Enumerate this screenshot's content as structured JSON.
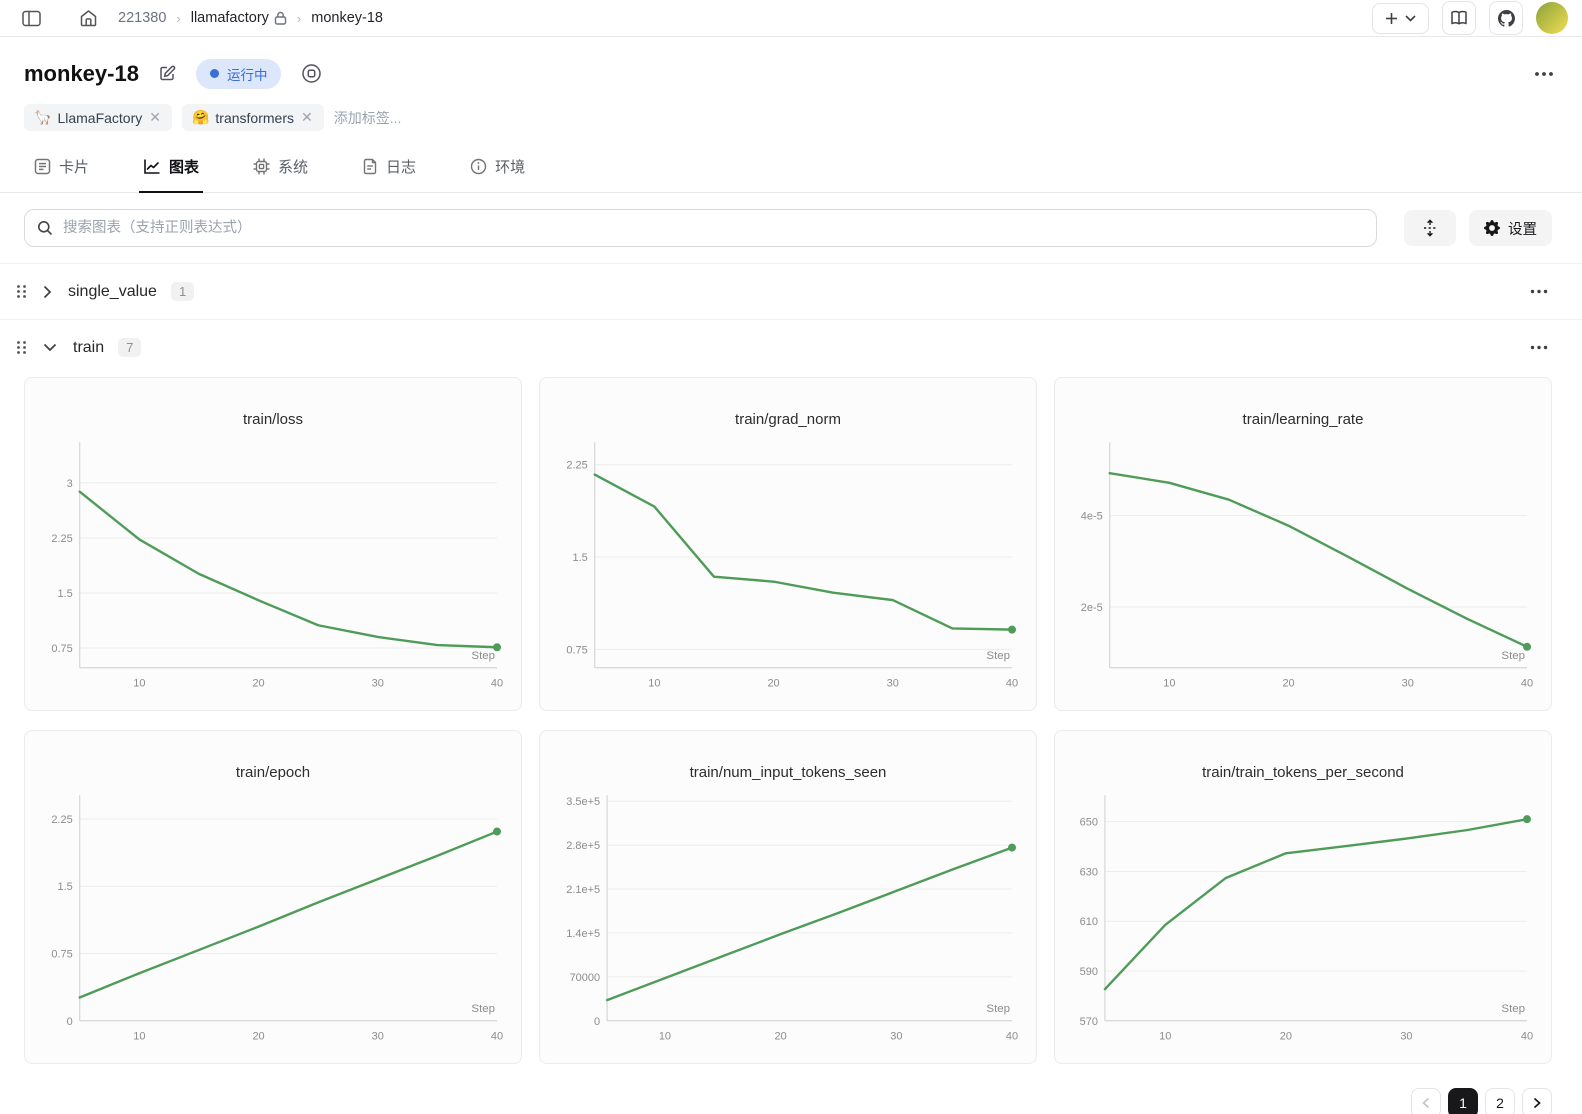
{
  "colors": {
    "status_blue": "#3b6ed8",
    "status_badge_bg": "#dce7fb",
    "chart_line": "#4f9b58",
    "active_page_bg": "#18181b"
  },
  "topbar": {
    "breadcrumb": {
      "project_id": "221380",
      "workspace": "llamafactory",
      "run": "monkey-18"
    }
  },
  "title_bar": {
    "run_name": "monkey-18",
    "status_label": "运行中",
    "more_label": "•••"
  },
  "tags": {
    "items": [
      {
        "icon": "🦙",
        "label": "LlamaFactory",
        "close": "✕"
      },
      {
        "icon": "🤗",
        "label": "transformers",
        "close": "✕"
      }
    ],
    "add_label": "添加标签..."
  },
  "tabs": {
    "items": [
      {
        "label": "卡片"
      },
      {
        "label": "图表"
      },
      {
        "label": "系统"
      },
      {
        "label": "日志"
      },
      {
        "label": "环境"
      }
    ]
  },
  "toolbar": {
    "search_placeholder": "搜索图表（支持正则表达式）",
    "settings_label": "设置"
  },
  "sections": [
    {
      "name": "single_value",
      "count": "1"
    },
    {
      "name": "train",
      "count": "7"
    }
  ],
  "pagination": {
    "pages": [
      "1",
      "2"
    ]
  },
  "chart_data": [
    {
      "type": "line",
      "title": "train/loss",
      "xlabel": "Step",
      "x": [
        5,
        10,
        15,
        20,
        25,
        30,
        35,
        40
      ],
      "values": [
        2.88,
        2.23,
        1.76,
        1.4,
        1.06,
        0.9,
        0.79,
        0.76
      ],
      "xticks": [
        10,
        20,
        30,
        40
      ],
      "xlim": [
        5,
        40
      ],
      "ytick_values": [
        0.75,
        1.5,
        2.25,
        3
      ],
      "ytick_labels": [
        "0.75",
        "1.5",
        "2.25",
        "3"
      ],
      "ylim": [
        0.48,
        3.5
      ],
      "grid": true,
      "end_dot": true
    },
    {
      "type": "line",
      "title": "train/grad_norm",
      "xlabel": "Step",
      "x": [
        5,
        10,
        15,
        20,
        25,
        30,
        35,
        40
      ],
      "values": [
        2.17,
        1.91,
        1.34,
        1.3,
        1.21,
        1.15,
        0.92,
        0.91
      ],
      "xticks": [
        10,
        20,
        30,
        40
      ],
      "xlim": [
        5,
        40
      ],
      "ytick_values": [
        0.75,
        1.5,
        2.25
      ],
      "ytick_labels": [
        "0.75",
        "1.5",
        "2.25"
      ],
      "ylim": [
        0.6,
        2.4
      ],
      "grid": true,
      "end_dot": true
    },
    {
      "type": "line",
      "title": "train/learning_rate",
      "xlabel": "Step",
      "x": [
        5,
        10,
        15,
        20,
        25,
        30,
        35,
        40
      ],
      "values": [
        4.93e-05,
        4.72e-05,
        4.35e-05,
        3.78e-05,
        3.1e-05,
        2.4e-05,
        1.74e-05,
        1.13e-05
      ],
      "xticks": [
        10,
        20,
        30,
        40
      ],
      "xlim": [
        5,
        40
      ],
      "ytick_values": [
        2e-05,
        4e-05
      ],
      "ytick_labels": [
        "2e-5",
        "4e-5"
      ],
      "ylim": [
        6.7e-06,
        5.52e-05
      ],
      "grid": true,
      "end_dot": true
    },
    {
      "type": "line",
      "title": "train/epoch",
      "xlabel": "Step",
      "x": [
        5,
        10,
        15,
        20,
        25,
        30,
        35,
        40
      ],
      "values": [
        0.26,
        0.53,
        0.79,
        1.05,
        1.32,
        1.58,
        1.84,
        2.11
      ],
      "xticks": [
        10,
        20,
        30,
        40
      ],
      "xlim": [
        5,
        40
      ],
      "ytick_values": [
        0,
        0.75,
        1.5,
        2.25
      ],
      "ytick_labels": [
        "0",
        "0.75",
        "1.5",
        "2.25"
      ],
      "ylim": [
        0,
        2.47
      ],
      "grid": true,
      "end_dot": true
    },
    {
      "type": "line",
      "title": "train/num_input_tokens_seen",
      "xlabel": "Step",
      "x": [
        5,
        10,
        15,
        20,
        25,
        30,
        35,
        40
      ],
      "values": [
        33000,
        68000,
        103000,
        138000,
        172000,
        207000,
        242000,
        276000
      ],
      "xticks": [
        10,
        20,
        30,
        40
      ],
      "xlim": [
        5,
        40
      ],
      "ytick_values": [
        0,
        70000,
        140000,
        210000,
        280000,
        350000
      ],
      "ytick_labels": [
        "0",
        "70000",
        "1.4e+5",
        "2.1e+5",
        "2.8e+5",
        "3.5e+5"
      ],
      "ylim": [
        0,
        353000
      ],
      "grid": true,
      "end_dot": true
    },
    {
      "type": "line",
      "title": "train/train_tokens_per_second",
      "xlabel": "Step",
      "x": [
        5,
        10,
        15,
        20,
        25,
        30,
        35,
        40
      ],
      "values": [
        582.7,
        608.5,
        627.3,
        637.3,
        640.2,
        643.2,
        646.6,
        651
      ],
      "xticks": [
        10,
        20,
        30,
        40
      ],
      "xlim": [
        5,
        40
      ],
      "ytick_values": [
        570,
        590,
        610,
        630,
        650
      ],
      "ytick_labels": [
        "570",
        "590",
        "610",
        "630",
        "650"
      ],
      "ylim": [
        570,
        659
      ],
      "grid": true,
      "end_dot": true
    }
  ]
}
